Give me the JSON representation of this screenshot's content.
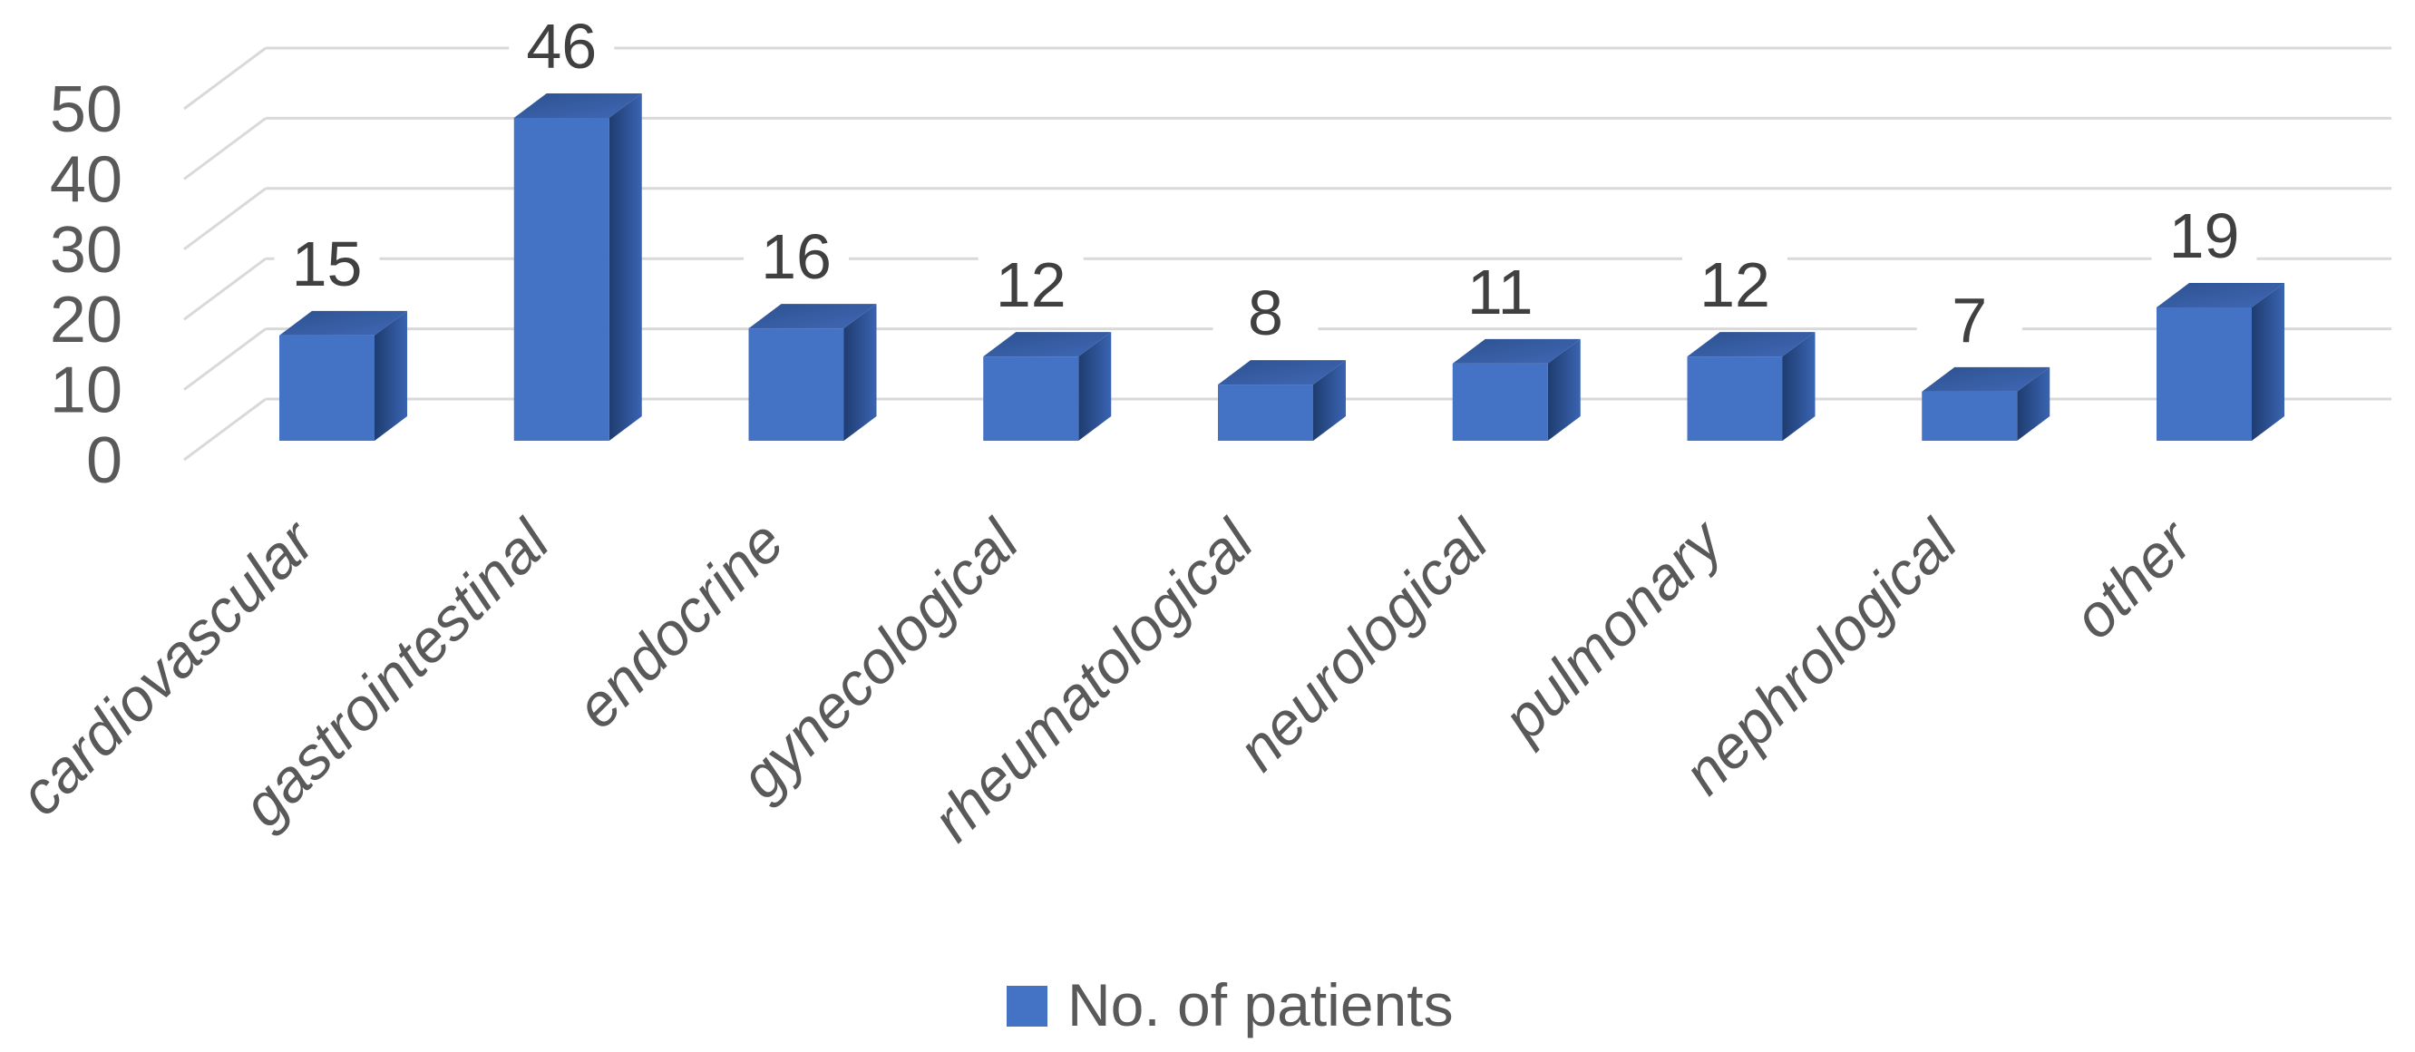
{
  "chart_data": {
    "type": "bar",
    "variant": "3d-column",
    "title": "",
    "xlabel": "",
    "ylabel": "",
    "categories": [
      "cardiovascular",
      "gastrointestinal",
      "endocrine",
      "gynecological",
      "rheumatological",
      "neurological",
      "pulmonary",
      "nephrological",
      "other"
    ],
    "series": [
      {
        "name": "No. of patients",
        "values": [
          15,
          46,
          16,
          12,
          8,
          11,
          12,
          7,
          19
        ]
      }
    ],
    "data_labels": [
      "15",
      "46",
      "16",
      "12",
      "8",
      "11",
      "12",
      "7",
      "19"
    ],
    "ylim": [
      0,
      50
    ],
    "yticks": [
      "0",
      "10",
      "20",
      "30",
      "40",
      "50"
    ],
    "grid": true,
    "legend": {
      "position": "bottom",
      "label": "No. of patients",
      "marker": "square"
    },
    "colors": {
      "bar_front": "#4472C4",
      "bar_top_dark": "#2D5190",
      "bar_top_light": "#4068B5",
      "bar_side_dark": "#1E3C6F",
      "bar_side_light": "#3A64B2",
      "gridline": "#D9D9D9",
      "axis_text": "#595959",
      "data_label_text": "#404040",
      "legend_text": "#595959",
      "legend_marker": "#4472C4",
      "background": "#FFFFFF"
    }
  }
}
